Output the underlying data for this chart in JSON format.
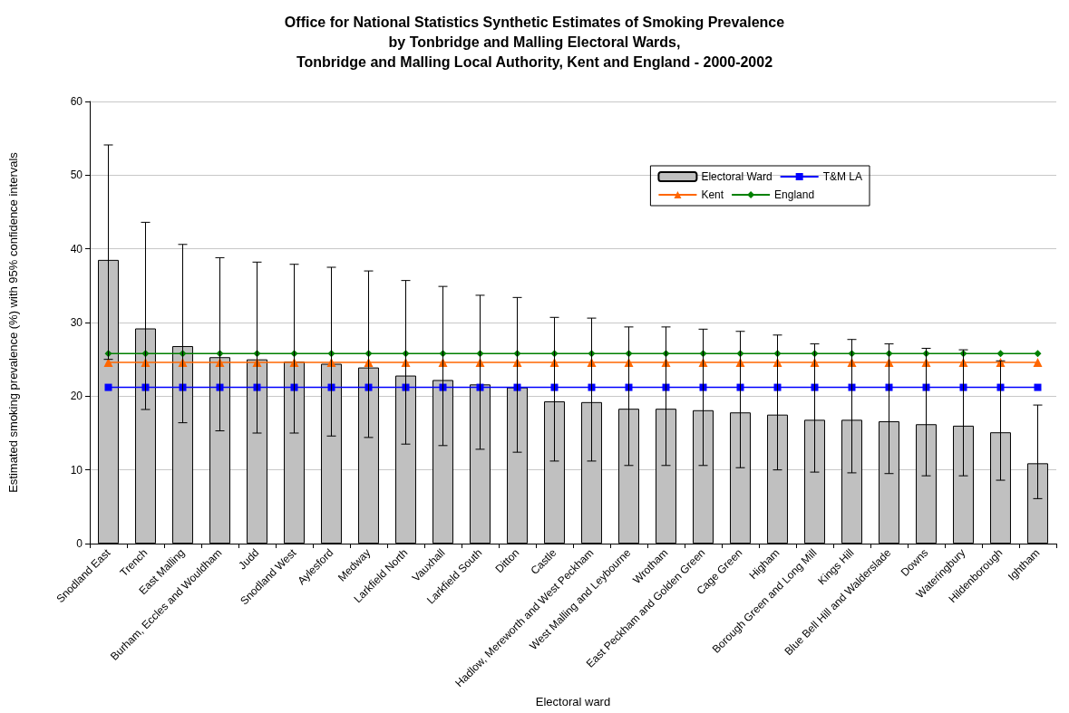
{
  "chart_data": {
    "type": "bar",
    "title": "Office for National Statistics Synthetic Estimates of Smoking Prevalence\nby Tonbridge and Malling Electoral Wards,\nTonbridge and Malling Local Authority, Kent and England - 2000-2002",
    "xlabel": "Electoral ward",
    "ylabel": "Estimated smoking prevalence (%) with 95% confidence intervals",
    "categories": [
      "Snodland East",
      "Trench",
      "East Malling",
      "Burham, Eccles and Wouldham",
      "Judd",
      "Snodland West",
      "Aylesford",
      "Medway",
      "Larkfield North",
      "Vauxhall",
      "Larkfield South",
      "Ditton",
      "Castle",
      "Hadlow, Mereworth and West Peckham",
      "West Malling and Leybourne",
      "Wrotham",
      "East Peckham and Golden Green",
      "Cage Green",
      "Higham",
      "Borough Green and Long Mill",
      "Kings Hill",
      "Blue Bell Hill and Walderslade",
      "Downs",
      "Wateringbury",
      "Hildenborough",
      "Ightham"
    ],
    "ylim": [
      0,
      60
    ],
    "yticks": [
      0,
      10,
      20,
      30,
      40,
      50,
      60
    ],
    "grid": "y",
    "legend": "top right",
    "series": [
      {
        "name": "Electoral Ward",
        "color": "#c0c0c0",
        "values": [
          38.5,
          29.2,
          26.8,
          25.3,
          25.0,
          24.7,
          24.4,
          23.9,
          22.8,
          22.2,
          21.6,
          21.2,
          19.3,
          19.2,
          18.3,
          18.3,
          18.1,
          17.8,
          17.5,
          16.8,
          16.8,
          16.6,
          16.2,
          16.0,
          15.1,
          10.9
        ],
        "errors": [
          [
            25.0,
            54.1
          ],
          [
            18.2,
            43.6
          ],
          [
            16.4,
            40.6
          ],
          [
            15.3,
            38.8
          ],
          [
            15.0,
            38.2
          ],
          [
            15.0,
            37.9
          ],
          [
            14.6,
            37.5
          ],
          [
            14.4,
            37.0
          ],
          [
            13.5,
            35.7
          ],
          [
            13.3,
            34.9
          ],
          [
            12.8,
            33.7
          ],
          [
            12.4,
            33.4
          ],
          [
            11.2,
            30.7
          ],
          [
            11.2,
            30.6
          ],
          [
            10.6,
            29.4
          ],
          [
            10.6,
            29.4
          ],
          [
            10.6,
            29.1
          ],
          [
            10.3,
            28.8
          ],
          [
            10.0,
            28.3
          ],
          [
            9.7,
            27.1
          ],
          [
            9.6,
            27.7
          ],
          [
            9.5,
            27.1
          ],
          [
            9.2,
            26.5
          ],
          [
            9.2,
            26.3
          ],
          [
            8.6,
            24.8
          ],
          [
            6.1,
            18.8
          ]
        ]
      },
      {
        "name": "T&M LA",
        "type": "line",
        "marker": "square",
        "color": "#0000ff",
        "values": [
          21.2,
          21.2,
          21.2,
          21.2,
          21.2,
          21.2,
          21.2,
          21.2,
          21.2,
          21.2,
          21.2,
          21.2,
          21.2,
          21.2,
          21.2,
          21.2,
          21.2,
          21.2,
          21.2,
          21.2,
          21.2,
          21.2,
          21.2,
          21.2,
          21.2,
          21.2
        ]
      },
      {
        "name": "Kent",
        "type": "line",
        "marker": "triangle",
        "color": "#ff6600",
        "values": [
          24.6,
          24.6,
          24.6,
          24.6,
          24.6,
          24.6,
          24.6,
          24.6,
          24.6,
          24.6,
          24.6,
          24.6,
          24.6,
          24.6,
          24.6,
          24.6,
          24.6,
          24.6,
          24.6,
          24.6,
          24.6,
          24.6,
          24.6,
          24.6,
          24.6,
          24.6
        ]
      },
      {
        "name": "England",
        "type": "line",
        "marker": "diamond",
        "color": "#008000",
        "values": [
          25.8,
          25.8,
          25.8,
          25.8,
          25.8,
          25.8,
          25.8,
          25.8,
          25.8,
          25.8,
          25.8,
          25.8,
          25.8,
          25.8,
          25.8,
          25.8,
          25.8,
          25.8,
          25.8,
          25.8,
          25.8,
          25.8,
          25.8,
          25.8,
          25.8,
          25.8
        ]
      }
    ]
  }
}
